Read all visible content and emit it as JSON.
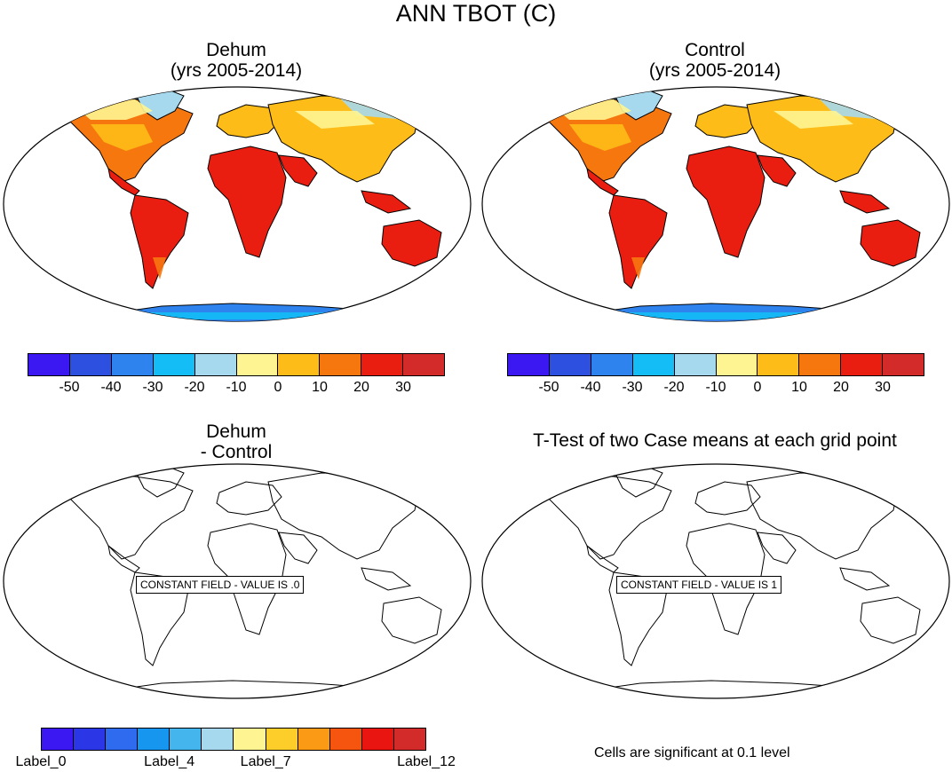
{
  "title": "ANN TBOT (C)",
  "panels": [
    {
      "title_line1": "Dehum",
      "title_line2": "(yrs 2005-2014)"
    },
    {
      "title_line1": "Control",
      "title_line2": "(yrs 2005-2014)"
    },
    {
      "title_line1": "Dehum",
      "title_line2": "- Control",
      "constant_label": "CONSTANT FIELD - VALUE IS .0"
    },
    {
      "title_line1": "T-Test of two Case means at each grid point",
      "constant_label": "CONSTANT FIELD - VALUE IS 1"
    }
  ],
  "colorbar_main": {
    "colors": [
      "#3b17f2",
      "#2e50e0",
      "#2f83ee",
      "#14bdf5",
      "#a6d8ee",
      "#fef592",
      "#fdbc17",
      "#f7770f",
      "#ea1e10",
      "#d32a2a"
    ],
    "labels": [
      "-50",
      "-40",
      "-30",
      "-20",
      "-10",
      "0",
      "10",
      "20",
      "30"
    ]
  },
  "colorbar_diff": {
    "colors": [
      "#3b17f2",
      "#2b37e6",
      "#2f6bee",
      "#1796f0",
      "#45b5ee",
      "#a6d8ee",
      "#fef592",
      "#fdce2a",
      "#fb9a14",
      "#f65510",
      "#e81510",
      "#d32a2a"
    ],
    "labels": [
      "Label_0",
      "Label_4",
      "Label_7",
      "Label_12"
    ]
  },
  "significance_note": "Cells are significant at 0.1 level",
  "chart_data": {
    "type": "heatmap",
    "variable": "ANN TBOT (C)",
    "projection": "Robinson",
    "units": "C",
    "contour_levels": [
      -50,
      -40,
      -30,
      -20,
      -10,
      0,
      10,
      20,
      30
    ],
    "panels": [
      "Dehum (yrs 2005-2014)",
      "Control (yrs 2005-2014)",
      "Dehum - Control",
      "T-Test of two Case means at each grid point"
    ],
    "difference_constant_value": 0,
    "ttest_constant_value": 1
  }
}
